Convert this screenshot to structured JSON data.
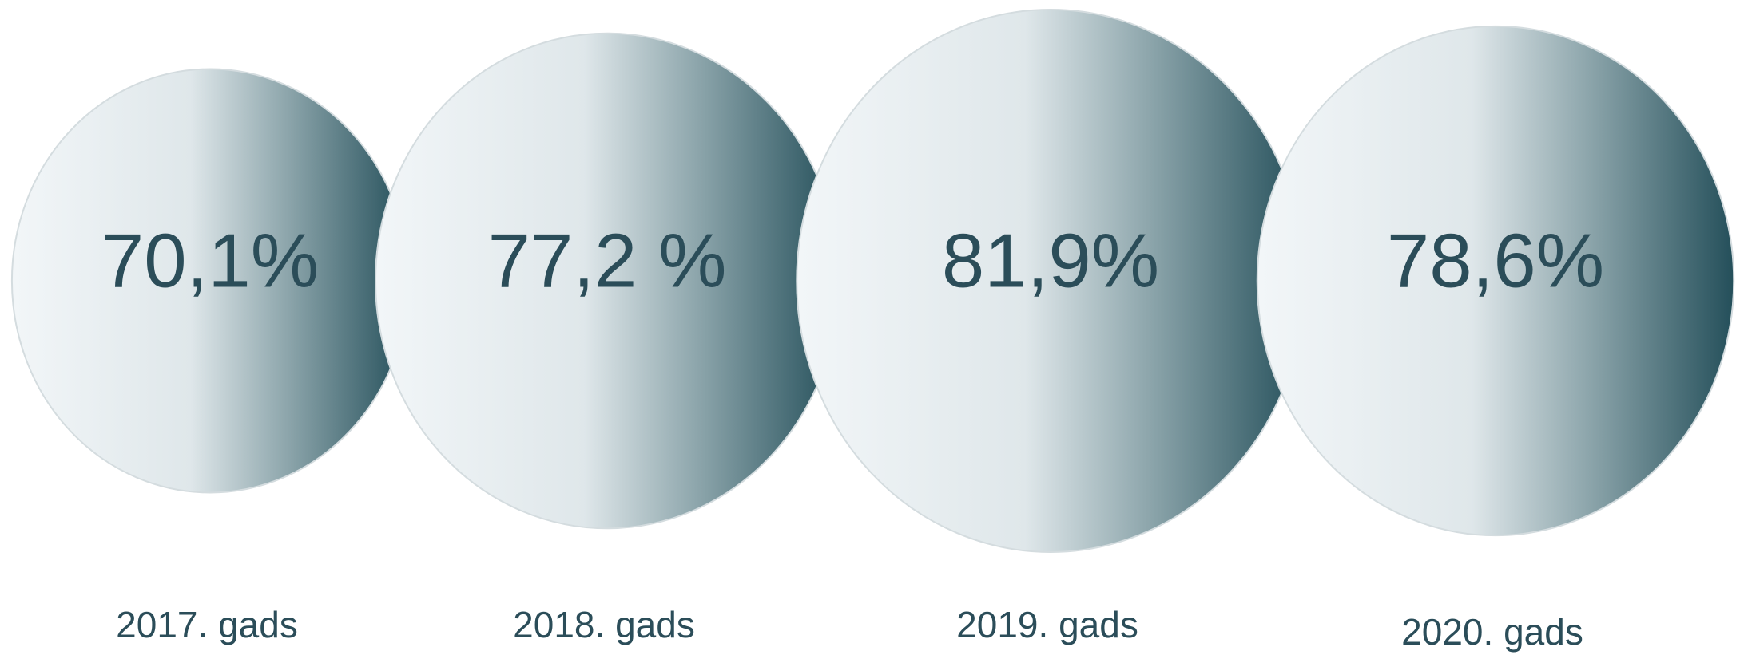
{
  "chart_data": {
    "type": "bubble",
    "categories": [
      "2017. gads",
      "2018. gads",
      "2019. gads",
      "2020. gads"
    ],
    "values": [
      70.1,
      77.2,
      81.9,
      78.6
    ],
    "value_labels": [
      "70,1%",
      "77,2 %",
      "81,9%",
      "78,6%"
    ],
    "color": "#244f5a"
  }
}
